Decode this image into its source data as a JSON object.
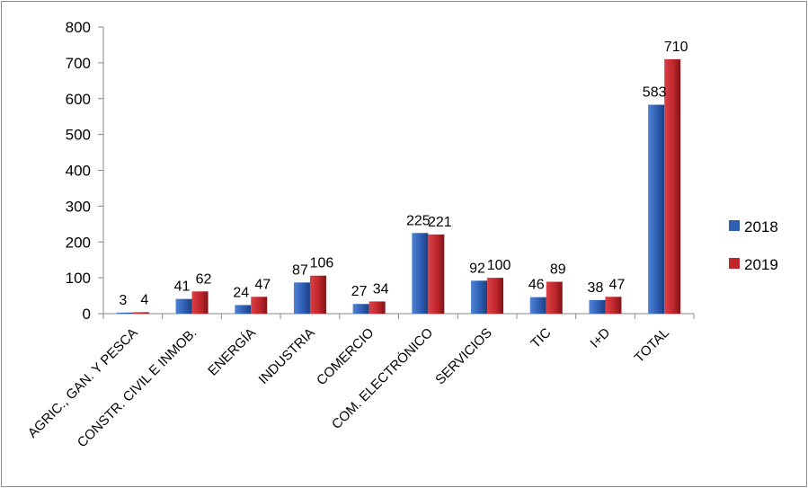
{
  "chart_data": {
    "type": "bar",
    "categories": [
      "AGRIC., GAN. Y PESCA",
      "CONSTR. CIVIL E INMOB.",
      "ENERGÍA",
      "INDUSTRIA",
      "COMERCIO",
      "COM. ELECTRÓNICO",
      "SERVICIOS",
      "TIC",
      "I+D",
      "TOTAL"
    ],
    "series": [
      {
        "name": "2018",
        "values": [
          3,
          41,
          24,
          87,
          27,
          225,
          92,
          46,
          38,
          583
        ],
        "color": "#2e5fb4",
        "dark": "#1d3f80",
        "light": "#4f82d4"
      },
      {
        "name": "2019",
        "values": [
          4,
          62,
          47,
          106,
          34,
          221,
          100,
          89,
          47,
          710
        ],
        "color": "#c0262b",
        "dark": "#7e1418",
        "light": "#d94146"
      }
    ],
    "ylim": [
      0,
      800
    ],
    "yticks": [
      0,
      100,
      200,
      300,
      400,
      500,
      600,
      700,
      800
    ],
    "title": "",
    "xlabel": "",
    "ylabel": "",
    "legend_position": "right",
    "grid": false
  }
}
